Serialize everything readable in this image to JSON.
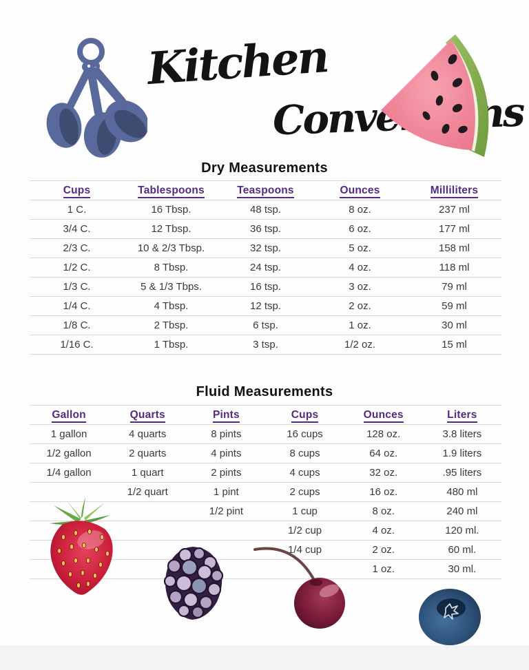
{
  "header": {
    "title_line1": "Kitchen",
    "title_line2": "Conversions",
    "illustration_left": "measuring-spoons",
    "illustration_right": "watermelon-slice"
  },
  "dry_table": {
    "title": "Dry Measurements",
    "headers": [
      "Cups",
      "Tablespoons",
      "Teaspoons",
      "Ounces",
      "Milliliters"
    ],
    "rows": [
      [
        "1 C.",
        "16 Tbsp.",
        "48 tsp.",
        "8 oz.",
        "237 ml"
      ],
      [
        "3/4 C.",
        "12 Tbsp.",
        "36 tsp.",
        "6 oz.",
        "177 ml"
      ],
      [
        "2/3 C.",
        "10 & 2/3 Tbsp.",
        "32 tsp.",
        "5 oz.",
        "158 ml"
      ],
      [
        "1/2 C.",
        "8 Tbsp.",
        "24 tsp.",
        "4 oz.",
        "118 ml"
      ],
      [
        "1/3 C.",
        "5 & 1/3 Tbps.",
        "16 tsp.",
        "3 oz.",
        "79 ml"
      ],
      [
        "1/4 C.",
        "4 Tbsp.",
        "12 tsp.",
        "2 oz.",
        "59 ml"
      ],
      [
        "1/8 C.",
        "2 Tbsp.",
        "6 tsp.",
        "1 oz.",
        "30 ml"
      ],
      [
        "1/16 C.",
        "1 Tbsp.",
        "3 tsp.",
        "1/2 oz.",
        "15 ml"
      ]
    ]
  },
  "fluid_table": {
    "title": "Fluid Measurements",
    "headers": [
      "Gallon",
      "Quarts",
      "Pints",
      "Cups",
      "Ounces",
      "Liters"
    ],
    "rows": [
      [
        "1 gallon",
        "4 quarts",
        "8 pints",
        "16 cups",
        "128 oz.",
        "3.8 liters"
      ],
      [
        "1/2 gallon",
        "2 quarts",
        "4 pints",
        "8 cups",
        "64 oz.",
        "1.9 liters"
      ],
      [
        "1/4 gallon",
        "1 quart",
        "2 pints",
        "4 cups",
        "32 oz.",
        ".95 liters"
      ],
      [
        "",
        "1/2 quart",
        "1 pint",
        "2 cups",
        "16 oz.",
        "480 ml"
      ],
      [
        "",
        "",
        "1/2 pint",
        "1 cup",
        "8 oz.",
        "240 ml"
      ],
      [
        "",
        "",
        "",
        "1/2 cup",
        "4 oz.",
        "120 ml."
      ],
      [
        "",
        "",
        "",
        "1/4 cup",
        "2 oz.",
        "60 ml."
      ],
      [
        "",
        "",
        "",
        "",
        "1 oz.",
        "30 ml."
      ]
    ]
  },
  "footer_illustrations": [
    "strawberry",
    "blackberry",
    "cherry",
    "blueberry"
  ],
  "colors": {
    "header_purple": "#552a80",
    "body_text": "#3a3a3a",
    "row_line": "#d8d8d8",
    "spoon_blue": "#5a699b",
    "spoon_bowl_dark": "#3f4c72",
    "watermelon_pink": "#f0869a",
    "watermelon_rind_green": "#86ae50",
    "strawberry_red": "#c91f38",
    "strawberry_leaf_green": "#6fae46",
    "blackberry_purple": "#332040",
    "cherry_maroon": "#6d1832",
    "blueberry_blue": "#2c4f76"
  }
}
